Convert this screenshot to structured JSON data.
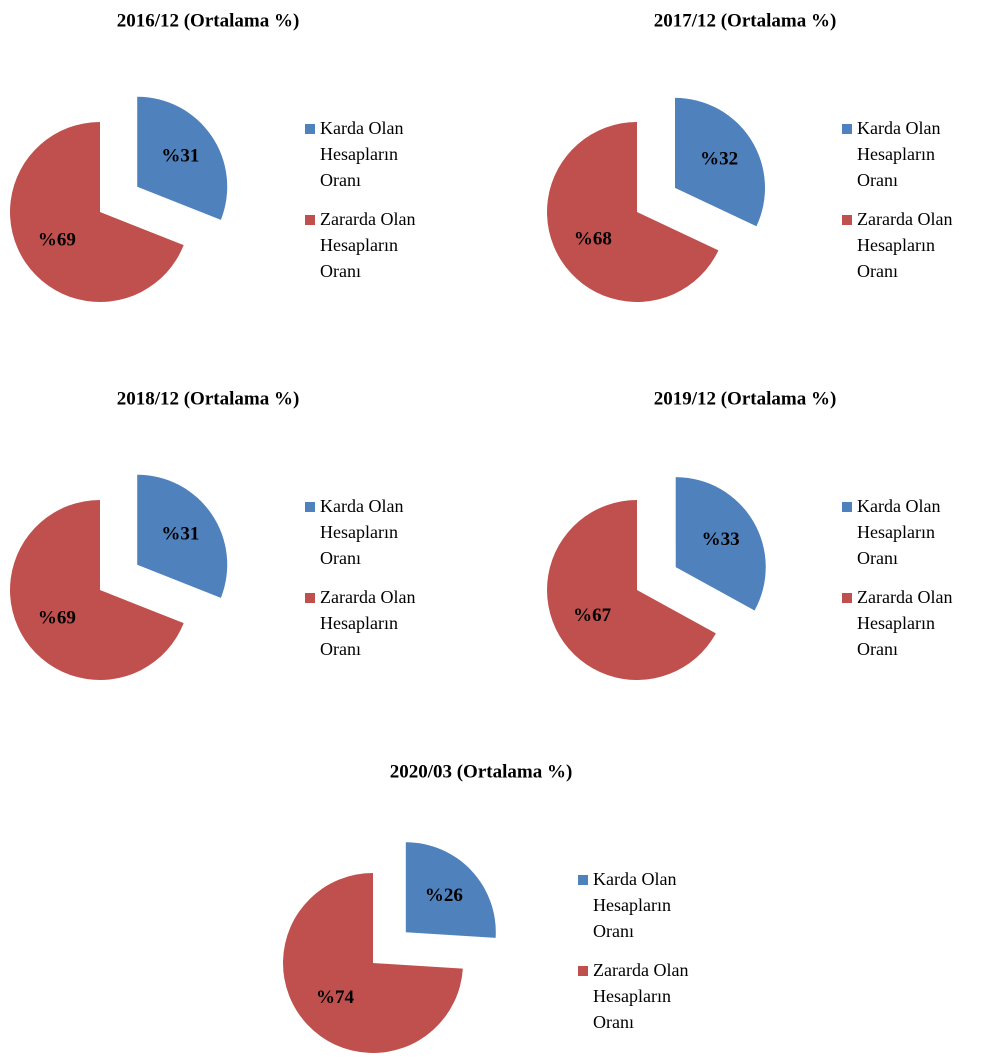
{
  "chart_data": [
    {
      "type": "pie",
      "title": "2016/12 (Ortalama %)",
      "categories": [
        "Karda Olan Hesapların Oranı",
        "Zararda Olan Hesapların Oranı"
      ],
      "values": [
        31,
        69
      ],
      "value_labels": [
        "%31",
        "%69"
      ],
      "colors": [
        "#4f81bd",
        "#c0504d"
      ]
    },
    {
      "type": "pie",
      "title": "2017/12 (Ortalama %)",
      "categories": [
        "Karda Olan Hesapların Oranı",
        "Zararda Olan Hesapların Oranı"
      ],
      "values": [
        32,
        68
      ],
      "value_labels": [
        "%32",
        "%68"
      ],
      "colors": [
        "#4f81bd",
        "#c0504d"
      ]
    },
    {
      "type": "pie",
      "title": "2018/12 (Ortalama %)",
      "categories": [
        "Karda Olan Hesapların Oranı",
        "Zararda Olan Hesapların Oranı"
      ],
      "values": [
        31,
        69
      ],
      "value_labels": [
        "%31",
        "%69"
      ],
      "colors": [
        "#4f81bd",
        "#c0504d"
      ]
    },
    {
      "type": "pie",
      "title": "2019/12 (Ortalama %)",
      "categories": [
        "Karda Olan Hesapların Oranı",
        "Zararda Olan Hesapların Oranı"
      ],
      "values": [
        33,
        67
      ],
      "value_labels": [
        "%33",
        "%67"
      ],
      "colors": [
        "#4f81bd",
        "#c0504d"
      ]
    },
    {
      "type": "pie",
      "title": "2020/03 (Ortalama %)",
      "categories": [
        "Karda Olan Hesapların Oranı",
        "Zararda Olan Hesapların Oranı"
      ],
      "values": [
        26,
        74
      ],
      "value_labels": [
        "%26",
        "%74"
      ],
      "colors": [
        "#4f81bd",
        "#c0504d"
      ]
    }
  ]
}
